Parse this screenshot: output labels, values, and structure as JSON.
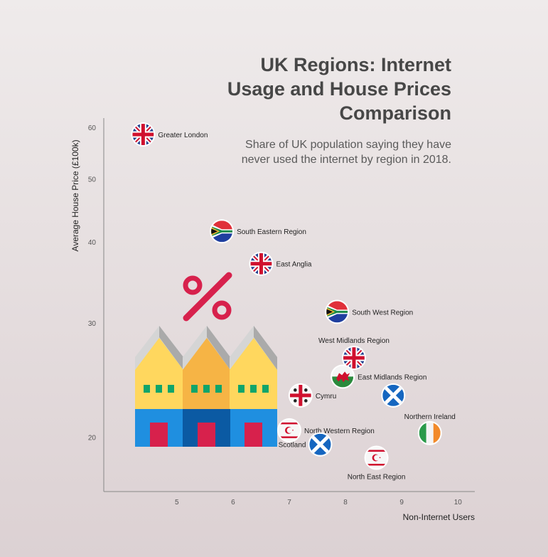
{
  "title": "UK Regions: Internet Usage and House Prices Comparison",
  "subtitle": "Share of UK population saying they have never used the internet by region in 2018.",
  "chart_data": {
    "type": "scatter",
    "xlabel": "Non-Internet Users",
    "ylabel": "Average House Price (£100k)",
    "xlim": [
      3.7,
      10.3
    ],
    "ylim": [
      16.5,
      62
    ],
    "y_scale": "log",
    "xticks": [
      5,
      6,
      7,
      8,
      9,
      10
    ],
    "yticks": [
      20,
      30,
      40,
      50,
      60
    ],
    "points": [
      {
        "label": "Greater London",
        "x": 4.4,
        "y": 58.5,
        "flag": "uk"
      },
      {
        "label": "South Eastern Region",
        "x": 5.8,
        "y": 41.5,
        "flag": "south-africa"
      },
      {
        "label": "East Anglia",
        "x": 6.5,
        "y": 37.0,
        "flag": "uk"
      },
      {
        "label": "South West Region",
        "x": 7.85,
        "y": 31.2,
        "flag": "south-africa"
      },
      {
        "label": "West Midlands Region",
        "x": 8.15,
        "y": 26.5,
        "flag": "uk"
      },
      {
        "label": "East Midlands Region",
        "x": 7.95,
        "y": 24.8,
        "flag": "wales"
      },
      {
        "label": "Cymru",
        "x": 7.2,
        "y": 23.2,
        "flag": "england-cross"
      },
      {
        "label": "North Western Region",
        "x": 7.0,
        "y": 20.5,
        "flag": "northern-cyprus"
      },
      {
        "label": "Scotland",
        "x": 7.55,
        "y": 19.5,
        "flag": "scotland"
      },
      {
        "label": "Northern Ireland",
        "x": 9.5,
        "y": 20.3,
        "flag": "ireland"
      },
      {
        "label": "",
        "x": 8.85,
        "y": 23.2,
        "flag": "scotland"
      },
      {
        "label": "North East Region",
        "x": 8.55,
        "y": 18.6,
        "flag": "northern-cyprus"
      }
    ]
  }
}
